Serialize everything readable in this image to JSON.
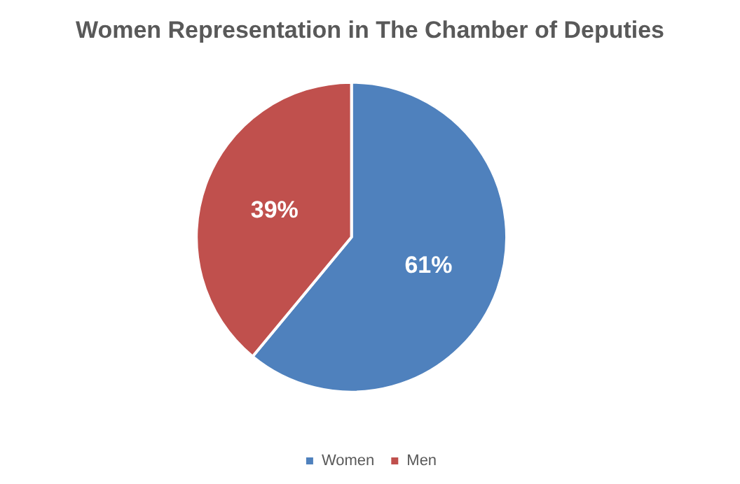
{
  "chart_data": {
    "type": "pie",
    "title": "Women Representation in The Chamber of Deputies",
    "categories": [
      "Women",
      "Men"
    ],
    "values": [
      61,
      39
    ],
    "colors": [
      "#4f81bd",
      "#c0504d"
    ],
    "value_labels": [
      "61%",
      "39%"
    ],
    "legend": "bottom"
  }
}
